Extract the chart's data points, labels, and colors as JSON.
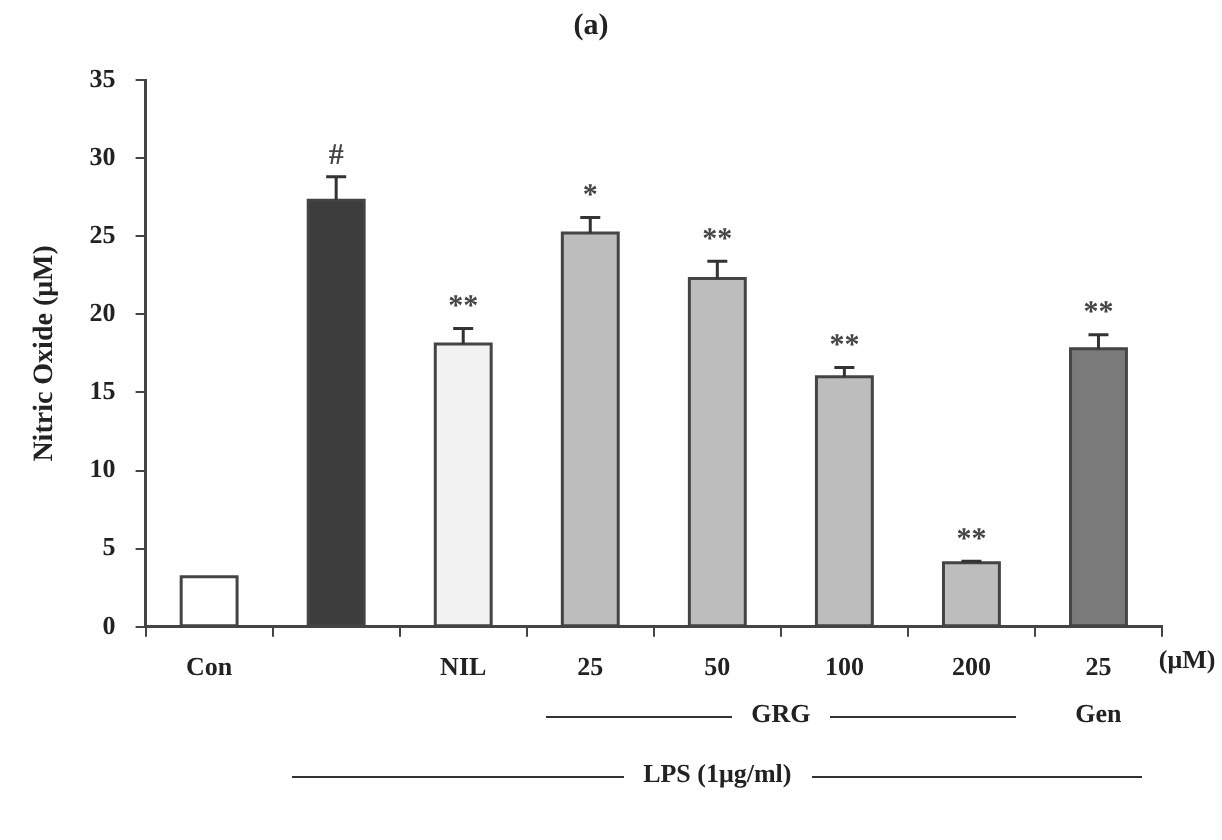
{
  "chart_data": {
    "type": "bar",
    "title": "(a)",
    "ylabel": "Nitric Oxide (μM)",
    "categories": [
      "Con",
      null,
      "NIL",
      "25",
      "50",
      "100",
      "200",
      "25"
    ],
    "values": [
      3.2,
      27.3,
      18.1,
      25.2,
      22.3,
      16.0,
      4.1,
      17.8
    ],
    "errors": [
      null,
      1.5,
      1.0,
      1.0,
      1.1,
      0.6,
      0.1,
      0.9
    ],
    "value_labels": [
      null,
      "#",
      "**",
      "*",
      "**",
      "**",
      "**",
      "**"
    ],
    "colors": [
      "#ffffff",
      "#3d3d3d",
      "#f2f2f2",
      "#bdbdbd",
      "#bdbdbd",
      "#bdbdbd",
      "#bdbdbd",
      "#7a7a7a"
    ],
    "ylim": [
      0,
      35
    ],
    "yticks": [
      0,
      5,
      10,
      15,
      20,
      25,
      30,
      35
    ],
    "grid": false,
    "legend": false,
    "annotations": [
      "(μM)",
      "GRG",
      "Gen",
      "LPS (1μg/ml)"
    ]
  }
}
